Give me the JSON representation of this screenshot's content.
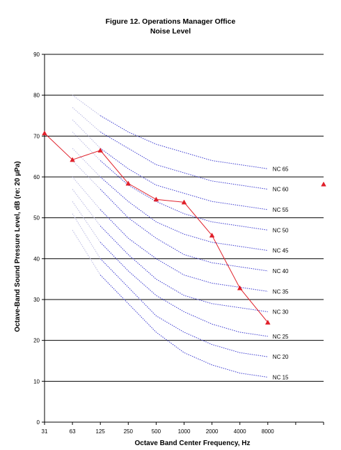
{
  "chart_data": {
    "type": "line",
    "title": "Figure 12. Operations Manager Office",
    "subtitle": "Noise Level",
    "xlabel": "Octave Band Center Frequency, Hz",
    "ylabel": "Octave-Band Sound Pressure Level, dB (re: 20 µPa)",
    "ylim": [
      0,
      90
    ],
    "yticks": [
      0,
      10,
      20,
      30,
      40,
      50,
      60,
      70,
      80,
      90
    ],
    "categories": [
      "31",
      "63",
      "125",
      "250",
      "500",
      "1000",
      "2000",
      "4000",
      "8000",
      "",
      ""
    ],
    "grid": "horizontal",
    "measured": {
      "color": "#e0202a",
      "x": [
        "31",
        "63",
        "125",
        "250",
        "500",
        "1000",
        "2000",
        "4000",
        "8000"
      ],
      "values": [
        70.7,
        64.2,
        66.5,
        58.4,
        54.5,
        53.8,
        45.7,
        32.8,
        24.4
      ]
    },
    "measured_extra_point": {
      "x_index": 10,
      "value": 58.2
    },
    "nc_curves": {
      "color": "#3a3ad0",
      "faint_color": "#b8b8e0",
      "x": [
        "63",
        "125",
        "250",
        "500",
        "1000",
        "2000",
        "4000",
        "8000"
      ],
      "series": [
        {
          "name": "NC 65",
          "values": [
            80,
            75,
            71,
            68,
            66,
            64,
            63,
            62
          ]
        },
        {
          "name": "NC 60",
          "values": [
            77,
            71,
            67,
            63,
            61,
            59,
            58,
            57
          ]
        },
        {
          "name": "NC 55",
          "values": [
            74,
            67,
            62,
            58,
            56,
            54,
            53,
            52
          ]
        },
        {
          "name": "NC 50",
          "values": [
            71,
            64,
            58,
            54,
            51,
            49,
            48,
            47
          ]
        },
        {
          "name": "NC 45",
          "values": [
            67,
            60,
            54,
            49,
            46,
            44,
            43,
            42
          ]
        },
        {
          "name": "NC 40",
          "values": [
            64,
            57,
            50,
            45,
            41,
            39,
            38,
            37
          ]
        },
        {
          "name": "NC 35",
          "values": [
            60,
            52,
            45,
            40,
            36,
            34,
            33,
            32
          ]
        },
        {
          "name": "NC 30",
          "values": [
            57,
            48,
            41,
            35,
            31,
            29,
            28,
            27
          ]
        },
        {
          "name": "NC 25",
          "values": [
            54,
            44,
            37,
            31,
            27,
            24,
            22,
            21
          ]
        },
        {
          "name": "NC 20",
          "values": [
            51,
            40,
            33,
            26,
            22,
            19,
            17,
            16
          ]
        },
        {
          "name": "NC 15",
          "values": [
            47,
            36,
            29,
            22,
            17,
            14,
            12,
            11
          ]
        }
      ]
    }
  }
}
